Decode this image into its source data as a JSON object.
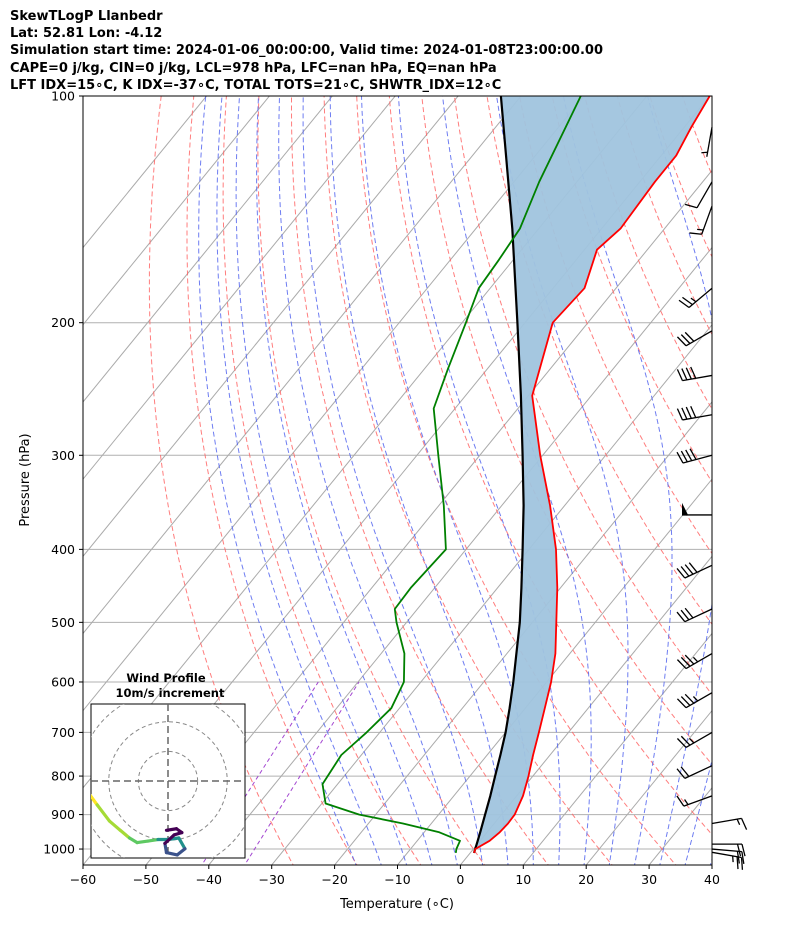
{
  "header": {
    "title": "SkewTLogP Llanbedr",
    "location": "Lat: 52.81   Lon: -4.12",
    "times": "Simulation start time: 2024-01-06_00:00:00, Valid time: 2024-01-08T23:00:00.00",
    "indices1": "CAPE=0 j/kg, CIN=0 j/kg, LCL=978 hPa, LFC=nan hPa, EQ=nan hPa",
    "indices2": "LFT IDX=15∘C, K IDX=-37∘C, TOTAL TOTS=21∘C, SHWTR_IDX=12∘C"
  },
  "colors": {
    "temperature": "#ff0000",
    "dewpoint": "#008000",
    "parcel": "#000000",
    "cape_fill": "#a0c4de",
    "dry_adiabat": "#ff6666",
    "moist_adiabat": "#5566ee",
    "mixing_ratio": "#9933cc",
    "isotherm": "#aaaaaa"
  },
  "chart_data": {
    "type": "line",
    "xlabel": "Temperature (∘C)",
    "ylabel": "Pressure (hPa)",
    "xlim": [
      -60,
      40
    ],
    "ylim": [
      1050,
      100
    ],
    "y_scale": "log",
    "skew": true,
    "grid": true,
    "x_ticks": [
      -60,
      -50,
      -40,
      -30,
      -20,
      -10,
      0,
      10,
      20,
      30,
      40
    ],
    "y_ticks": [
      100,
      200,
      300,
      400,
      500,
      600,
      700,
      800,
      900,
      1000
    ],
    "series": [
      {
        "key": "temperature",
        "points": [
          [
            1012,
            0.6
          ],
          [
            1000,
            0.3
          ],
          [
            975,
            1.5
          ],
          [
            950,
            2.0
          ],
          [
            925,
            2.2
          ],
          [
            900,
            2.1
          ],
          [
            850,
            1.0
          ],
          [
            800,
            -0.7
          ],
          [
            750,
            -2.7
          ],
          [
            700,
            -4.7
          ],
          [
            650,
            -6.9
          ],
          [
            600,
            -9.3
          ],
          [
            550,
            -12.3
          ],
          [
            500,
            -16.2
          ],
          [
            450,
            -20.5
          ],
          [
            400,
            -25.7
          ],
          [
            350,
            -32.3
          ],
          [
            300,
            -40.4
          ],
          [
            250,
            -49.4
          ],
          [
            200,
            -55.6
          ],
          [
            180,
            -55.0
          ],
          [
            160,
            -58.0
          ],
          [
            150,
            -57.0
          ],
          [
            130,
            -57.6
          ],
          [
            120,
            -57.6
          ],
          [
            110,
            -58.9
          ],
          [
            100,
            -60.0
          ]
        ]
      },
      {
        "key": "dewpoint",
        "points": [
          [
            1012,
            -2.3
          ],
          [
            1000,
            -2.7
          ],
          [
            975,
            -3.2
          ],
          [
            950,
            -7.6
          ],
          [
            925,
            -14.5
          ],
          [
            900,
            -22.6
          ],
          [
            870,
            -29.4
          ],
          [
            820,
            -32.4
          ],
          [
            750,
            -33.2
          ],
          [
            700,
            -32.1
          ],
          [
            650,
            -31.3
          ],
          [
            600,
            -32.7
          ],
          [
            550,
            -36.3
          ],
          [
            500,
            -41.6
          ],
          [
            480,
            -43.6
          ],
          [
            450,
            -43.8
          ],
          [
            400,
            -43.2
          ],
          [
            350,
            -49.2
          ],
          [
            300,
            -56.6
          ],
          [
            260,
            -63.4
          ],
          [
            230,
            -66.3
          ],
          [
            200,
            -69.4
          ],
          [
            180,
            -71.8
          ],
          [
            165,
            -72.3
          ],
          [
            150,
            -73.0
          ],
          [
            130,
            -76.0
          ],
          [
            100,
            -80.5
          ]
        ]
      },
      {
        "key": "parcel",
        "points": [
          [
            1012,
            0.6
          ],
          [
            978,
            -0.3
          ],
          [
            950,
            -1.1
          ],
          [
            900,
            -2.6
          ],
          [
            850,
            -4.2
          ],
          [
            800,
            -6.0
          ],
          [
            750,
            -7.9
          ],
          [
            700,
            -10.0
          ],
          [
            650,
            -12.5
          ],
          [
            600,
            -15.3
          ],
          [
            550,
            -18.5
          ],
          [
            500,
            -22.0
          ],
          [
            450,
            -26.2
          ],
          [
            400,
            -31.0
          ],
          [
            350,
            -36.5
          ],
          [
            300,
            -43.2
          ],
          [
            250,
            -51.2
          ],
          [
            200,
            -61.2
          ],
          [
            150,
            -74.2
          ],
          [
            100,
            -93.2
          ]
        ]
      }
    ],
    "wind_barbs": [
      {
        "p": 1010,
        "dir": 100,
        "spd": 25
      },
      {
        "p": 1000,
        "dir": 95,
        "spd": 20
      },
      {
        "p": 985,
        "dir": 90,
        "spd": 20
      },
      {
        "p": 925,
        "dir": 80,
        "spd": 15
      },
      {
        "p": 850,
        "dir": 250,
        "spd": 15
      },
      {
        "p": 775,
        "dir": 245,
        "spd": 20
      },
      {
        "p": 700,
        "dir": 240,
        "spd": 25
      },
      {
        "p": 620,
        "dir": 240,
        "spd": 35
      },
      {
        "p": 550,
        "dir": 240,
        "spd": 35
      },
      {
        "p": 480,
        "dir": 245,
        "spd": 30
      },
      {
        "p": 420,
        "dir": 245,
        "spd": 40
      },
      {
        "p": 360,
        "dir": 270,
        "spd": 50
      },
      {
        "p": 300,
        "dir": 255,
        "spd": 40
      },
      {
        "p": 265,
        "dir": 260,
        "spd": 40
      },
      {
        "p": 235,
        "dir": 260,
        "spd": 40
      },
      {
        "p": 205,
        "dir": 240,
        "spd": 30
      },
      {
        "p": 180,
        "dir": 230,
        "spd": 25
      },
      {
        "p": 140,
        "dir": 200,
        "spd": 15
      },
      {
        "p": 130,
        "dir": 210,
        "spd": 10
      },
      {
        "p": 110,
        "dir": 190,
        "spd": 5
      }
    ],
    "inset": {
      "title": "Wind Profile",
      "subtitle": "10m/s increment",
      "hodograph": [
        [
          -12.6,
          -0.9
        ],
        [
          -11.0,
          -1.3
        ],
        [
          -10.3,
          -1.6
        ],
        [
          -9.2,
          -3.1
        ],
        [
          -7.6,
          -5.2
        ],
        [
          -6.2,
          -6.4
        ],
        [
          -5.0,
          -7.4
        ],
        [
          -4.0,
          -8.0
        ],
        [
          -2.6,
          -7.8
        ],
        [
          -1.3,
          -7.6
        ],
        [
          0,
          -7.6
        ],
        [
          1.4,
          -7.4
        ],
        [
          2.2,
          -8.8
        ],
        [
          1.2,
          -9.6
        ],
        [
          -0.2,
          -9.3
        ],
        [
          -0.4,
          -8.1
        ],
        [
          0.8,
          -7.0
        ],
        [
          1.8,
          -6.7
        ],
        [
          1.1,
          -6.2
        ],
        [
          -0.2,
          -6.4
        ]
      ]
    }
  }
}
